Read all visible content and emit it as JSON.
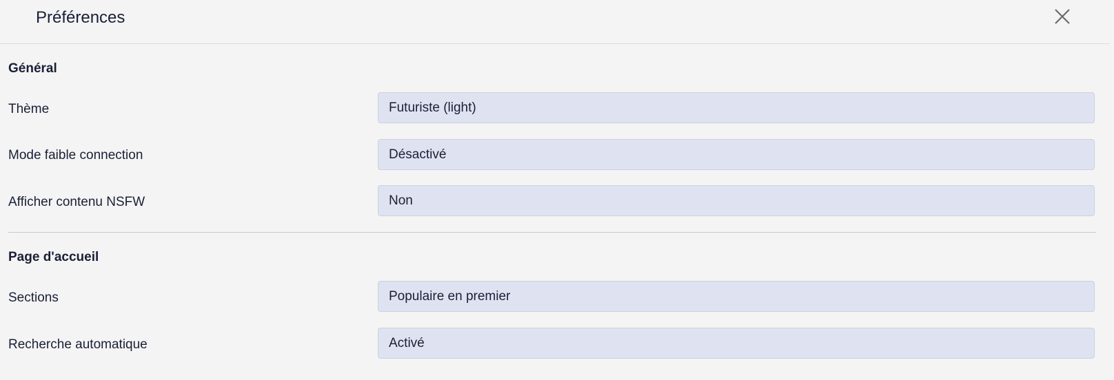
{
  "header": {
    "title": "Préférences",
    "close_icon": "close-icon"
  },
  "sections": [
    {
      "heading": "Général",
      "items": [
        {
          "label": "Thème",
          "value": "Futuriste (light)"
        },
        {
          "label": "Mode faible connection",
          "value": "Désactivé"
        },
        {
          "label": "Afficher contenu NSFW",
          "value": "Non"
        }
      ]
    },
    {
      "heading": "Page d'accueil",
      "items": [
        {
          "label": "Sections",
          "value": "Populaire en premier"
        },
        {
          "label": "Recherche automatique",
          "value": "Activé"
        }
      ]
    }
  ]
}
